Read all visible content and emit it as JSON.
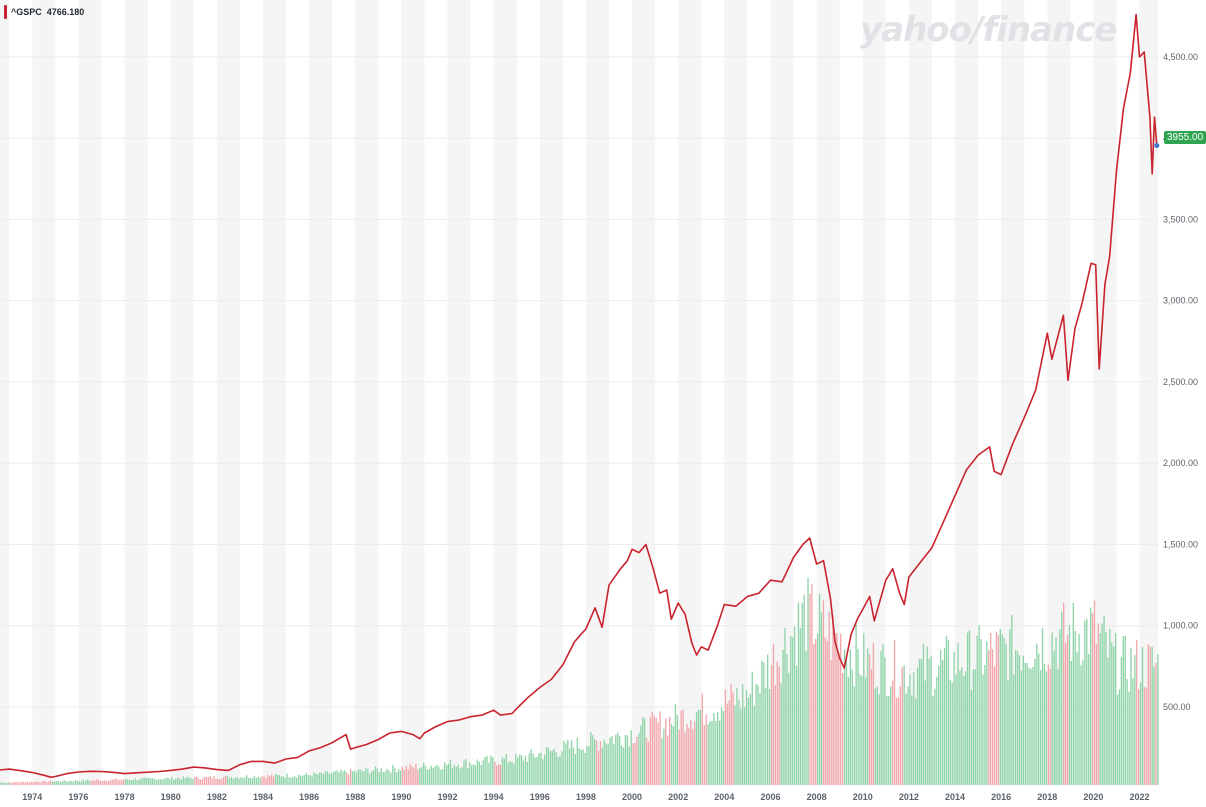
{
  "legend": {
    "symbol": "^GSPC",
    "value": "4766.180"
  },
  "logo": {
    "text": "yahoo/finance"
  },
  "price_badge": {
    "text": "3955.00"
  },
  "colors": {
    "line": "#c9232e",
    "volume_up": "#8fd4a8",
    "volume_down": "#f2a7ab",
    "band": "#f5f5f5",
    "grid": "#ececec",
    "badge": "#2ea651"
  },
  "chart_data": {
    "type": "line",
    "title": "",
    "xlabel": "",
    "ylabel": "",
    "x_range": [
      1972.6,
      2022.8
    ],
    "ylim": [
      20,
      4850
    ],
    "y_ticks": [
      500,
      1000,
      1500,
      2000,
      2500,
      3000,
      3500,
      4000,
      4500
    ],
    "y_tick_labels": [
      "500.00",
      "1,000.00",
      "1,500.00",
      "2,000.00",
      "2,500.00",
      "3,000.00",
      "3,500.00",
      "4,000.00",
      "4,500.00"
    ],
    "x_ticks": [
      1974,
      1976,
      1978,
      1980,
      1982,
      1984,
      1986,
      1988,
      1990,
      1992,
      1994,
      1996,
      1998,
      2000,
      2002,
      2004,
      2006,
      2008,
      2010,
      2012,
      2014,
      2016,
      2018,
      2020,
      2022
    ],
    "x_tick_labels": [
      "1974",
      "1976",
      "1978",
      "1980",
      "1982",
      "1984",
      "1986",
      "1988",
      "1990",
      "1992",
      "1994",
      "1996",
      "1998",
      "2000",
      "2002",
      "2004",
      "2006",
      "2008",
      "2010",
      "2012",
      "2014",
      "2016",
      "2018",
      "2020",
      "2022"
    ],
    "grid": true,
    "series": [
      {
        "symbol": "^GSPC",
        "points": [
          [
            1972.6,
            112
          ],
          [
            1973.0,
            118
          ],
          [
            1973.5,
            108
          ],
          [
            1974.0,
            97
          ],
          [
            1974.5,
            80
          ],
          [
            1974.8,
            68
          ],
          [
            1975.0,
            72
          ],
          [
            1975.5,
            90
          ],
          [
            1976.0,
            100
          ],
          [
            1976.5,
            104
          ],
          [
            1977.0,
            103
          ],
          [
            1977.5,
            98
          ],
          [
            1978.0,
            90
          ],
          [
            1978.5,
            95
          ],
          [
            1979.0,
            99
          ],
          [
            1979.5,
            103
          ],
          [
            1980.0,
            110
          ],
          [
            1980.5,
            118
          ],
          [
            1981.0,
            130
          ],
          [
            1981.5,
            125
          ],
          [
            1982.0,
            115
          ],
          [
            1982.5,
            110
          ],
          [
            1983.0,
            145
          ],
          [
            1983.5,
            165
          ],
          [
            1984.0,
            165
          ],
          [
            1984.5,
            155
          ],
          [
            1985.0,
            180
          ],
          [
            1985.5,
            190
          ],
          [
            1986.0,
            230
          ],
          [
            1986.5,
            250
          ],
          [
            1987.0,
            280
          ],
          [
            1987.6,
            330
          ],
          [
            1987.8,
            240
          ],
          [
            1988.0,
            250
          ],
          [
            1988.5,
            270
          ],
          [
            1989.0,
            300
          ],
          [
            1989.5,
            340
          ],
          [
            1990.0,
            350
          ],
          [
            1990.5,
            330
          ],
          [
            1990.8,
            305
          ],
          [
            1991.0,
            340
          ],
          [
            1991.5,
            380
          ],
          [
            1992.0,
            410
          ],
          [
            1992.5,
            420
          ],
          [
            1993.0,
            440
          ],
          [
            1993.5,
            450
          ],
          [
            1994.0,
            480
          ],
          [
            1994.3,
            450
          ],
          [
            1994.8,
            460
          ],
          [
            1995.0,
            490
          ],
          [
            1995.5,
            560
          ],
          [
            1996.0,
            620
          ],
          [
            1996.5,
            670
          ],
          [
            1997.0,
            760
          ],
          [
            1997.5,
            900
          ],
          [
            1997.8,
            950
          ],
          [
            1998.0,
            980
          ],
          [
            1998.4,
            1110
          ],
          [
            1998.7,
            990
          ],
          [
            1999.0,
            1250
          ],
          [
            1999.5,
            1350
          ],
          [
            1999.8,
            1400
          ],
          [
            2000.0,
            1470
          ],
          [
            2000.3,
            1450
          ],
          [
            2000.6,
            1500
          ],
          [
            2000.9,
            1360
          ],
          [
            2001.2,
            1200
          ],
          [
            2001.5,
            1220
          ],
          [
            2001.7,
            1040
          ],
          [
            2002.0,
            1140
          ],
          [
            2002.3,
            1070
          ],
          [
            2002.6,
            890
          ],
          [
            2002.8,
            820
          ],
          [
            2003.0,
            870
          ],
          [
            2003.3,
            850
          ],
          [
            2003.7,
            1000
          ],
          [
            2004.0,
            1130
          ],
          [
            2004.5,
            1120
          ],
          [
            2005.0,
            1180
          ],
          [
            2005.5,
            1200
          ],
          [
            2006.0,
            1280
          ],
          [
            2006.5,
            1270
          ],
          [
            2007.0,
            1420
          ],
          [
            2007.4,
            1500
          ],
          [
            2007.7,
            1540
          ],
          [
            2008.0,
            1380
          ],
          [
            2008.3,
            1400
          ],
          [
            2008.6,
            1170
          ],
          [
            2008.8,
            900
          ],
          [
            2009.0,
            800
          ],
          [
            2009.2,
            740
          ],
          [
            2009.5,
            950
          ],
          [
            2009.8,
            1050
          ],
          [
            2010.0,
            1100
          ],
          [
            2010.3,
            1180
          ],
          [
            2010.5,
            1030
          ],
          [
            2010.8,
            1180
          ],
          [
            2011.0,
            1280
          ],
          [
            2011.3,
            1350
          ],
          [
            2011.6,
            1200
          ],
          [
            2011.8,
            1130
          ],
          [
            2012.0,
            1300
          ],
          [
            2012.5,
            1390
          ],
          [
            2013.0,
            1480
          ],
          [
            2013.5,
            1640
          ],
          [
            2014.0,
            1800
          ],
          [
            2014.5,
            1960
          ],
          [
            2015.0,
            2050
          ],
          [
            2015.5,
            2100
          ],
          [
            2015.7,
            1950
          ],
          [
            2016.0,
            1930
          ],
          [
            2016.5,
            2120
          ],
          [
            2017.0,
            2280
          ],
          [
            2017.5,
            2450
          ],
          [
            2018.0,
            2800
          ],
          [
            2018.2,
            2640
          ],
          [
            2018.7,
            2910
          ],
          [
            2018.9,
            2510
          ],
          [
            2019.2,
            2830
          ],
          [
            2019.5,
            2980
          ],
          [
            2019.9,
            3230
          ],
          [
            2020.1,
            3220
          ],
          [
            2020.25,
            2580
          ],
          [
            2020.5,
            3100
          ],
          [
            2020.7,
            3270
          ],
          [
            2021.0,
            3800
          ],
          [
            2021.3,
            4180
          ],
          [
            2021.6,
            4400
          ],
          [
            2021.85,
            4760
          ],
          [
            2022.0,
            4500
          ],
          [
            2022.2,
            4530
          ],
          [
            2022.45,
            4130
          ],
          [
            2022.55,
            3780
          ],
          [
            2022.65,
            4130
          ],
          [
            2022.75,
            3955
          ]
        ]
      }
    ],
    "volume_bands": [
      {
        "start": 1972.6,
        "end": 1986.0,
        "level": 0.012
      },
      {
        "start": 1986.0,
        "end": 1995.0,
        "level": 0.05
      },
      {
        "start": 1995.0,
        "end": 2000.0,
        "level": 0.13
      },
      {
        "start": 2000.0,
        "end": 2005.0,
        "level": 0.26
      },
      {
        "start": 2005.0,
        "end": 2007.5,
        "level": 0.45
      },
      {
        "start": 2007.5,
        "end": 2010.0,
        "level": 0.85
      },
      {
        "start": 2010.0,
        "end": 2012.0,
        "level": 0.62
      },
      {
        "start": 2012.0,
        "end": 2020.0,
        "level": 0.56
      },
      {
        "start": 2020.0,
        "end": 2021.0,
        "level": 0.78
      },
      {
        "start": 2021.0,
        "end": 2022.8,
        "level": 0.6
      }
    ]
  }
}
